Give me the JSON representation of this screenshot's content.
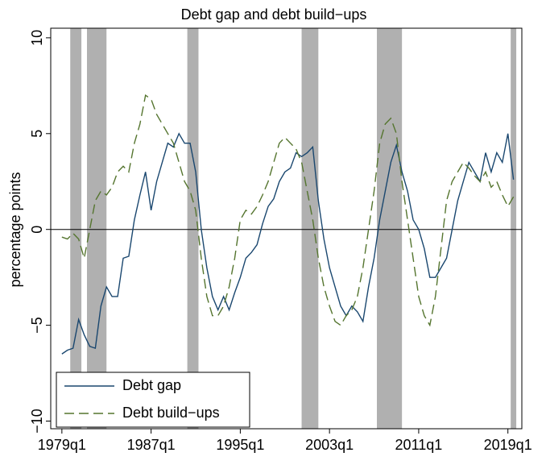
{
  "chart_data": {
    "type": "line",
    "title": "Debt gap and debt build−ups",
    "y_label": "percentage points",
    "x": [
      "1979q1",
      "1979q3",
      "1980q1",
      "1980q3",
      "1981q1",
      "1981q3",
      "1982q1",
      "1982q3",
      "1983q1",
      "1983q3",
      "1984q1",
      "1984q3",
      "1985q1",
      "1985q3",
      "1986q1",
      "1986q3",
      "1987q1",
      "1987q3",
      "1988q1",
      "1988q3",
      "1989q1",
      "1989q3",
      "1990q1",
      "1990q3",
      "1991q1",
      "1991q3",
      "1992q1",
      "1992q3",
      "1993q1",
      "1993q3",
      "1994q1",
      "1994q3",
      "1995q1",
      "1995q3",
      "1996q1",
      "1996q3",
      "1997q1",
      "1997q3",
      "1998q1",
      "1998q3",
      "1999q1",
      "1999q3",
      "2000q1",
      "2000q3",
      "2001q1",
      "2001q3",
      "2002q1",
      "2002q3",
      "2003q1",
      "2003q3",
      "2004q1",
      "2004q3",
      "2005q1",
      "2005q3",
      "2006q1",
      "2006q3",
      "2007q1",
      "2007q3",
      "2008q1",
      "2008q3",
      "2009q1",
      "2009q3",
      "2010q1",
      "2010q3",
      "2011q1",
      "2011q3",
      "2012q1",
      "2012q3",
      "2013q1",
      "2013q3",
      "2014q1",
      "2014q3",
      "2015q1",
      "2015q3",
      "2016q1",
      "2016q3",
      "2017q1",
      "2017q3",
      "2018q1",
      "2018q3",
      "2019q1",
      "2019q3"
    ],
    "series": [
      {
        "name": "Debt gap",
        "color": "#1a476f",
        "dash": "none",
        "values": [
          -6.5,
          -6.3,
          -6.2,
          -4.7,
          -5.5,
          -6.1,
          -6.2,
          -4.0,
          -3.0,
          -3.5,
          -3.5,
          -1.5,
          -1.4,
          0.5,
          1.8,
          3.0,
          1.0,
          2.5,
          3.5,
          4.5,
          4.3,
          5.0,
          4.5,
          4.5,
          3.0,
          0.0,
          -2.0,
          -3.5,
          -4.2,
          -3.5,
          -4.2,
          -3.3,
          -2.5,
          -1.5,
          -1.2,
          -0.8,
          0.3,
          1.2,
          1.6,
          2.5,
          3.0,
          3.2,
          4.0,
          3.8,
          4.0,
          4.3,
          1.5,
          -0.5,
          -2.0,
          -3.0,
          -4.0,
          -4.5,
          -4.0,
          -4.3,
          -4.8,
          -3.0,
          -1.5,
          0.5,
          2.0,
          3.5,
          4.4,
          3.0,
          2.0,
          0.5,
          0.0,
          -1.0,
          -2.5,
          -2.5,
          -2.0,
          -1.5,
          0.0,
          1.5,
          2.5,
          3.5,
          3.0,
          2.5,
          4.0,
          3.0,
          4.0,
          3.5,
          5.0,
          2.6
        ]
      },
      {
        "name": "Debt build−ups",
        "color": "#55752f",
        "dash": "12 6",
        "values": [
          -0.4,
          -0.5,
          -0.2,
          -0.5,
          -1.5,
          0,
          1.5,
          2.0,
          1.8,
          2.2,
          3.0,
          3.3,
          3.0,
          4.5,
          5.5,
          7.0,
          6.8,
          6.0,
          5.5,
          5.0,
          4.5,
          3.5,
          2.5,
          2.0,
          1.0,
          -1.5,
          -3.5,
          -4.5,
          -4.5,
          -4.0,
          -3.0,
          -1.5,
          0.5,
          1.0,
          0.8,
          1.2,
          1.8,
          2.5,
          3.5,
          4.5,
          4.8,
          4.5,
          4.2,
          3.5,
          2.0,
          0.5,
          -1.5,
          -3.0,
          -4.0,
          -4.8,
          -5.0,
          -4.5,
          -4.2,
          -3.5,
          -2.0,
          0,
          2.0,
          4.5,
          5.5,
          5.8,
          5.0,
          2.5,
          0.5,
          -1.5,
          -3.5,
          -4.5,
          -5.0,
          -3.5,
          -1.0,
          1.5,
          2.5,
          3.0,
          3.5,
          3.2,
          2.8,
          2.5,
          3.0,
          2.2,
          2.5,
          1.8,
          1.2,
          1.7
        ]
      }
    ],
    "shaded_periods": [
      {
        "start": "1979q4",
        "end": "1980q3"
      },
      {
        "start": "1981q2",
        "end": "1982q4"
      },
      {
        "start": "1990q2",
        "end": "1991q1"
      },
      {
        "start": "2000q3",
        "end": "2001q4"
      },
      {
        "start": "2007q2",
        "end": "2009q2"
      },
      {
        "start": "2019q2",
        "end": "2019q3"
      }
    ],
    "shade_color": "#b0b0b0",
    "reference_line": 0,
    "xlim": [
      "1978q1",
      "2020q2"
    ],
    "xticks": [
      "1979q1",
      "1987q1",
      "1995q1",
      "2003q1",
      "2011q1",
      "2019q1"
    ],
    "ylim": [
      -10.4,
      10.5
    ],
    "yticks": [
      {
        "value": -10,
        "label": "−10"
      },
      {
        "value": -5,
        "label": "−5"
      },
      0,
      5,
      10
    ],
    "legend": "lower left"
  }
}
